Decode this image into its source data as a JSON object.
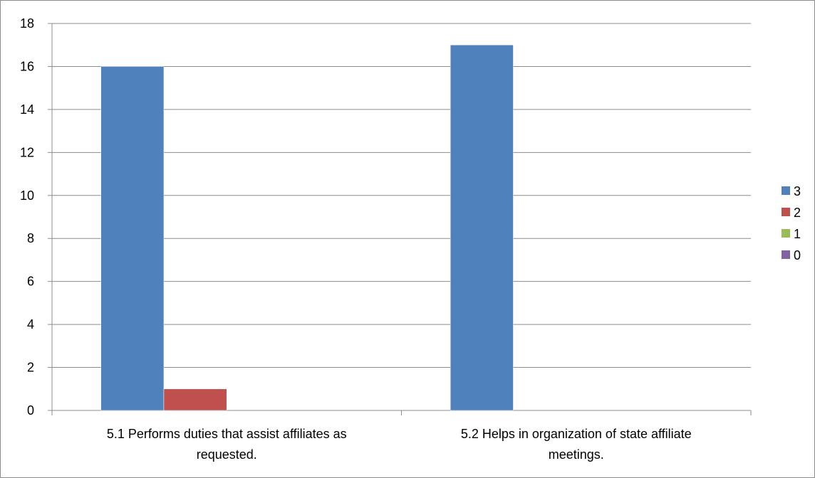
{
  "chart_data": {
    "type": "bar",
    "categories": [
      [
        "5.1 Performs duties that assist affiliates as",
        "requested."
      ],
      [
        "5.2 Helps in organization of state affiliate",
        "meetings."
      ]
    ],
    "series": [
      {
        "name": "3",
        "color": "#4f81bd",
        "values": [
          16,
          17
        ]
      },
      {
        "name": "2",
        "color": "#c0504d",
        "values": [
          1,
          0
        ]
      },
      {
        "name": "1",
        "color": "#9bbb59",
        "values": [
          0,
          0
        ]
      },
      {
        "name": "0",
        "color": "#8064a2",
        "values": [
          0,
          0
        ]
      }
    ],
    "ylim": [
      0,
      18
    ],
    "y_ticks": [
      0,
      2,
      4,
      6,
      8,
      10,
      12,
      14,
      16,
      18
    ],
    "grid": true,
    "legend_position": "right"
  }
}
